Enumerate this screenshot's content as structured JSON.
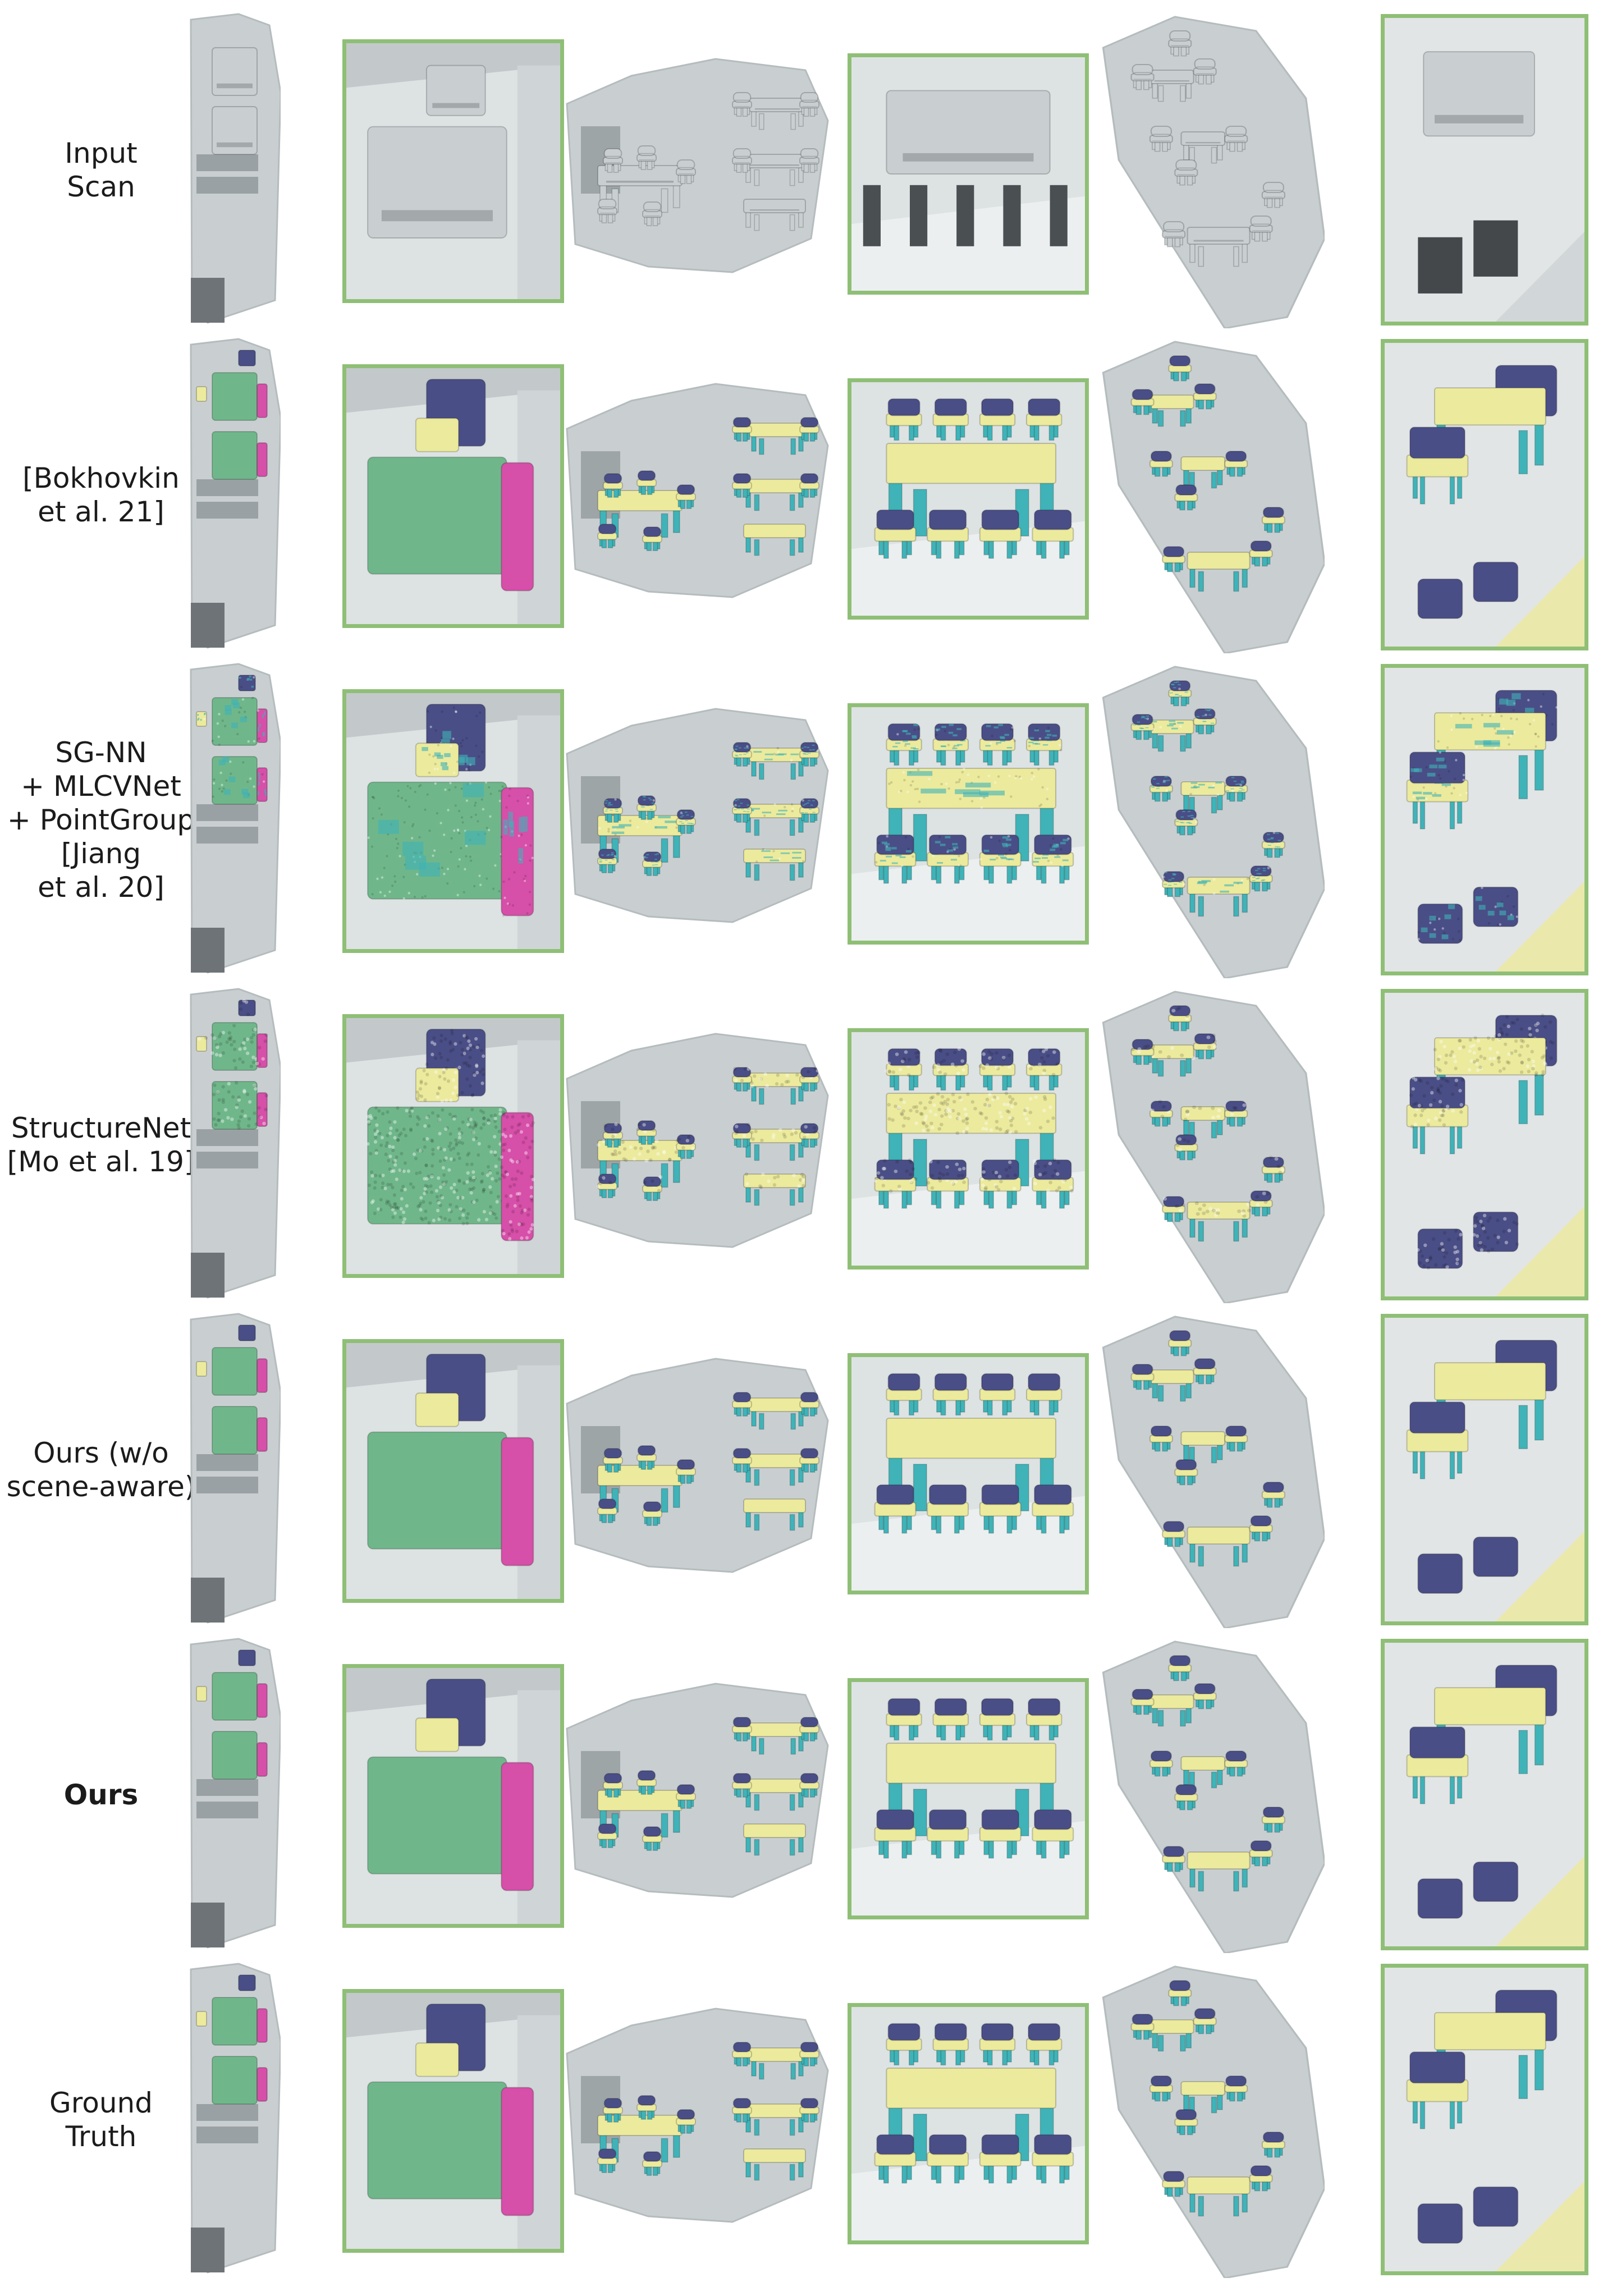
{
  "figure": {
    "rows": [
      {
        "id": "input-scan",
        "label": "Input\nScan",
        "bold": false,
        "style": "scan"
      },
      {
        "id": "bokhovkin",
        "label": "[Bokhovkin\net al. 21]",
        "bold": false,
        "style": "solid"
      },
      {
        "id": "sgnn-mlcvnet-pointgroup",
        "label": "SG-NN\n+ MLCVNet\n+ PointGroup\n[Jiang\net al. 20]",
        "bold": false,
        "style": "noisy"
      },
      {
        "id": "structurenet",
        "label": "StructureNet\n[Mo et al. 19]",
        "bold": false,
        "style": "points"
      },
      {
        "id": "ours-wo-scene-aware",
        "label": "Ours (w/o\nscene-aware)",
        "bold": false,
        "style": "solid"
      },
      {
        "id": "ours",
        "label": "Ours",
        "bold": true,
        "style": "solid"
      },
      {
        "id": "ground-truth",
        "label": "Ground\nTruth",
        "bold": false,
        "style": "solid"
      }
    ],
    "colors": {
      "scan_gray": "#c9cfd1",
      "scan_dark": "#5c6164",
      "frame_green": "#8fbf76",
      "bed_green": "#6fb78a",
      "sofa_magenta": "#d64fa8",
      "chair_navy": "#4a4e86",
      "table_yellow": "#ecea9c",
      "leg_teal": "#3fb3b8",
      "pink_part": "#c98aa6"
    }
  }
}
